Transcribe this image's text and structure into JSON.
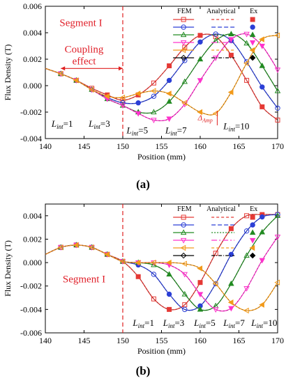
{
  "chart_data": [
    {
      "type": "line",
      "panel_label": "(a)",
      "xlabel": "Position (mm)",
      "ylabel": "Flux Density (T)",
      "xlim": [
        140,
        170
      ],
      "ylim": [
        -0.004,
        0.006
      ],
      "x_ticks": [
        "140",
        "145",
        "150",
        "155",
        "160",
        "165",
        "170"
      ],
      "y_ticks": [
        "-0.004",
        "-0.002",
        "0.000",
        "0.002",
        "0.004",
        "0.006"
      ],
      "legend": {
        "headers": [
          "FEM",
          "Analytical",
          "Ex"
        ],
        "placement": "top-right"
      },
      "series_colors": [
        "#e53935",
        "#2b3fd6",
        "#228b22",
        "#ff33cc",
        "#f29a1a",
        "#000000"
      ],
      "series": [
        {
          "label_main": "L",
          "label_sub": "int",
          "label_value": "=1",
          "x": [
            140,
            142,
            144,
            146,
            148,
            150,
            152,
            154,
            156,
            158,
            160,
            162,
            164,
            166,
            168,
            170
          ],
          "values": [
            0.0013,
            0.0009,
            0.0004,
            -0.0002,
            -0.0007,
            -0.0011,
            -0.0007,
            0.0002,
            0.0015,
            0.0029,
            0.0038,
            0.0037,
            0.0023,
            0.0004,
            -0.0016,
            -0.0026
          ]
        },
        {
          "label_main": "L",
          "label_sub": "int",
          "label_value": "=3",
          "x": [
            140,
            142,
            144,
            146,
            148,
            150,
            152,
            154,
            156,
            158,
            160,
            162,
            164,
            166,
            168,
            170
          ],
          "values": [
            0.0013,
            0.0009,
            0.0004,
            -0.0003,
            -0.0009,
            -0.0013,
            -0.0013,
            -0.0008,
            0.0004,
            0.0019,
            0.0033,
            0.0039,
            0.0034,
            0.0018,
            -0.0001,
            -0.0017
          ]
        },
        {
          "label_main": "L",
          "label_sub": "int",
          "label_value": "=5",
          "x": [
            140,
            142,
            144,
            146,
            148,
            150,
            152,
            154,
            156,
            158,
            160,
            162,
            164,
            166,
            168,
            170
          ],
          "values": [
            0.0013,
            0.0009,
            0.0004,
            -0.0003,
            -0.001,
            -0.0015,
            -0.002,
            -0.002,
            -0.0012,
            0.0003,
            0.002,
            0.0034,
            0.0039,
            0.0032,
            0.0015,
            -0.0004
          ]
        },
        {
          "label_main": "L",
          "label_sub": "int",
          "label_value": "=7",
          "x": [
            140,
            142,
            144,
            146,
            148,
            150,
            152,
            154,
            156,
            158,
            160,
            162,
            164,
            166,
            168,
            170
          ],
          "values": [
            0.0013,
            0.0009,
            0.0004,
            -0.0003,
            -0.001,
            -0.0015,
            -0.0021,
            -0.0026,
            -0.0025,
            -0.0014,
            0.0004,
            0.0021,
            0.0035,
            0.0039,
            0.003,
            0.0012
          ]
        },
        {
          "label_main": "L",
          "label_sub": "int",
          "label_value": "=10",
          "x": [
            140,
            142,
            144,
            146,
            148,
            150,
            152,
            154,
            156,
            158,
            160,
            162,
            164,
            166,
            168,
            170
          ],
          "values": [
            0.0013,
            0.0009,
            0.0004,
            -0.0003,
            -0.0008,
            -0.0009,
            -0.0006,
            -0.0004,
            -0.0006,
            -0.0013,
            -0.002,
            -0.0021,
            -0.0005,
            0.0017,
            0.0035,
            0.0038
          ]
        }
      ],
      "annotations": {
        "segment": "Segment I",
        "coupling_1": "Coupling",
        "coupling_2": "effect",
        "amp_main": "Δ",
        "amp_sub": "Amp"
      }
    },
    {
      "type": "line",
      "panel_label": "(b)",
      "xlabel": "Position (mm)",
      "ylabel": "Flux Density (T)",
      "xlim": [
        140,
        170
      ],
      "ylim": [
        -0.006,
        0.005
      ],
      "x_ticks": [
        "140",
        "145",
        "150",
        "155",
        "160",
        "165",
        "170"
      ],
      "y_ticks": [
        "-0.006",
        "-0.004",
        "-0.002",
        "0.000",
        "0.002",
        "0.004"
      ],
      "legend": {
        "headers": [
          "FEM",
          "Analytical",
          "Ex"
        ],
        "placement": "top-right"
      },
      "series_colors": [
        "#e53935",
        "#2b3fd6",
        "#228b22",
        "#ff33cc",
        "#f29a1a",
        "#000000"
      ],
      "series": [
        {
          "label_main": "L",
          "label_sub": "int",
          "label_value": "=1",
          "x": [
            140,
            142,
            144,
            146,
            148,
            150,
            152,
            154,
            156,
            158,
            160,
            162,
            164,
            166,
            168,
            170
          ],
          "values": [
            0.0007,
            0.0013,
            0.0015,
            0.0013,
            0.0007,
            0.0001,
            -0.0012,
            -0.0031,
            -0.004,
            -0.0036,
            -0.0017,
            0.0008,
            0.0029,
            0.004,
            0.0041,
            0.0041
          ]
        },
        {
          "label_main": "L",
          "label_sub": "int",
          "label_value": "=3",
          "x": [
            140,
            142,
            144,
            146,
            148,
            150,
            152,
            154,
            156,
            158,
            160,
            162,
            164,
            166,
            168,
            170
          ],
          "values": [
            0.0007,
            0.0013,
            0.0015,
            0.0013,
            0.0007,
            0.0001,
            -0.0002,
            -0.001,
            -0.0027,
            -0.004,
            -0.0037,
            -0.0018,
            0.0007,
            0.0027,
            0.0039,
            0.0041
          ]
        },
        {
          "label_main": "L",
          "label_sub": "int",
          "label_value": "=5",
          "x": [
            140,
            142,
            144,
            146,
            148,
            150,
            152,
            154,
            156,
            158,
            160,
            162,
            164,
            166,
            168,
            170
          ],
          "values": [
            0.0007,
            0.0013,
            0.0015,
            0.0013,
            0.0007,
            0.0001,
            0.0,
            -0.0002,
            -0.001,
            -0.0027,
            -0.004,
            -0.0037,
            -0.0018,
            0.0006,
            0.0026,
            0.004
          ]
        },
        {
          "label_main": "L",
          "label_sub": "int",
          "label_value": "=7",
          "x": [
            140,
            142,
            144,
            146,
            148,
            150,
            152,
            154,
            156,
            158,
            160,
            162,
            164,
            166,
            168,
            170
          ],
          "values": [
            0.0007,
            0.0013,
            0.0015,
            0.0013,
            0.0007,
            0.0001,
            0.0,
            0.0,
            -0.0002,
            -0.001,
            -0.0027,
            -0.004,
            -0.0039,
            -0.0022,
            0.0002,
            0.0022
          ]
        },
        {
          "label_main": "L",
          "label_sub": "int",
          "label_value": "=10",
          "x": [
            140,
            142,
            144,
            146,
            148,
            150,
            152,
            154,
            156,
            158,
            160,
            162,
            164,
            166,
            168,
            170
          ],
          "values": [
            0.0007,
            0.0013,
            0.0015,
            0.0013,
            0.0007,
            0.0001,
            0.0,
            0.0,
            0.0,
            -0.0001,
            -0.0005,
            -0.0018,
            -0.0034,
            -0.0041,
            -0.0036,
            -0.0017
          ]
        }
      ],
      "annotations": {
        "segment": "Segment I"
      }
    }
  ]
}
